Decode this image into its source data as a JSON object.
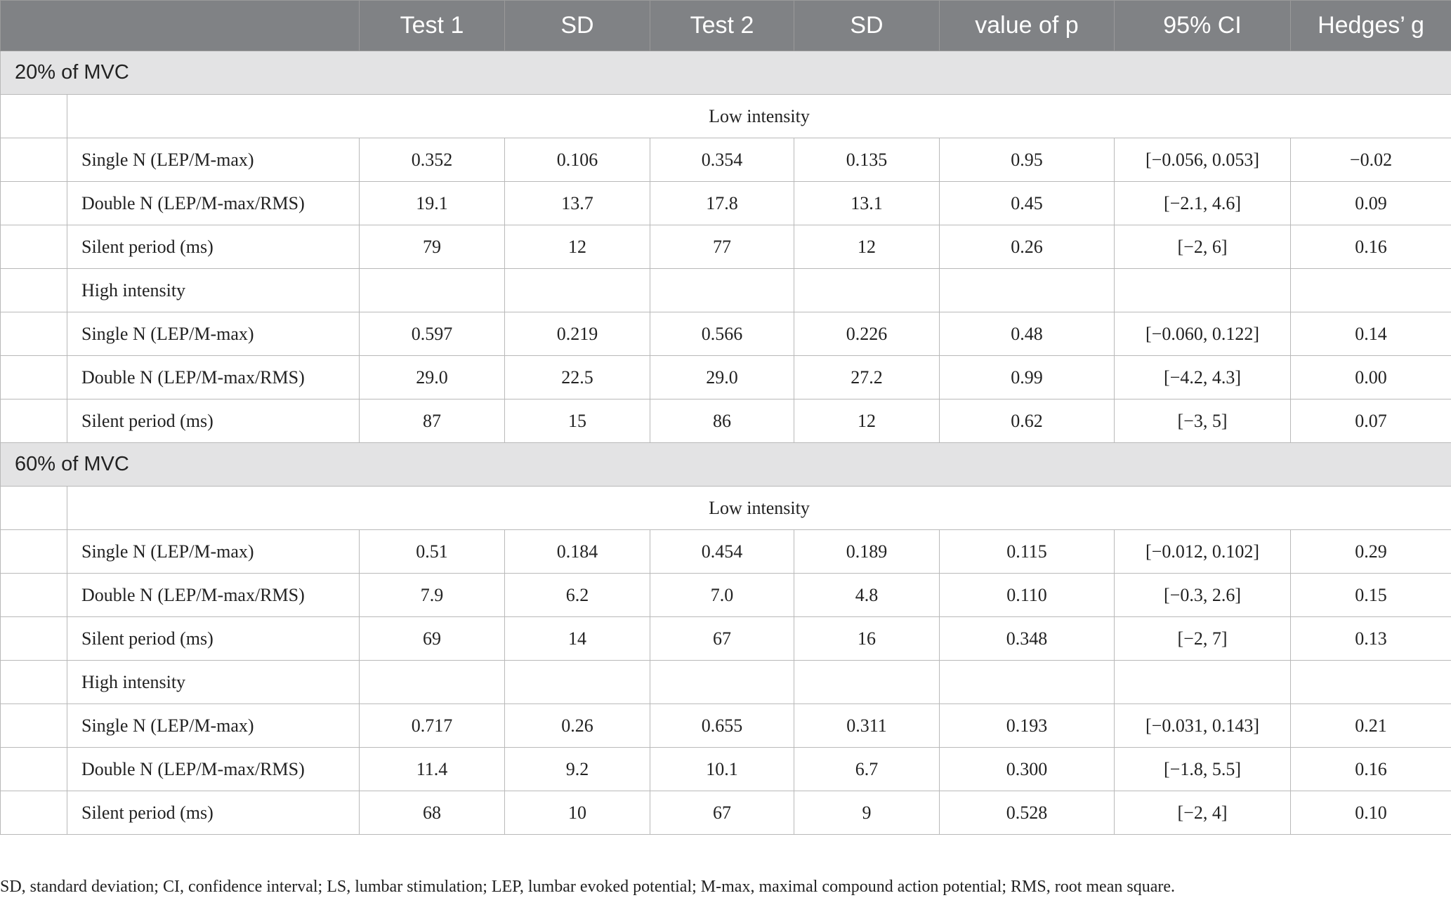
{
  "table": {
    "columns": [
      "Test 1",
      "SD",
      "Test 2",
      "SD",
      "value of p",
      "95% CI",
      "Hedges’ g"
    ],
    "sections": [
      {
        "title": "20% of MVC",
        "blocks": [
          {
            "label": "Low intensity",
            "rows": [
              {
                "label": "Single N (LEP/M-max)",
                "values": [
                  "0.352",
                  "0.106",
                  "0.354",
                  "0.135",
                  "0.95",
                  "[−0.056, 0.053]",
                  "−0.02"
                ]
              },
              {
                "label": "Double N (LEP/M-max/RMS)",
                "values": [
                  "19.1",
                  "13.7",
                  "17.8",
                  "13.1",
                  "0.45",
                  "[−2.1, 4.6]",
                  "0.09"
                ]
              },
              {
                "label": "Silent period (ms)",
                "values": [
                  "79",
                  "12",
                  "77",
                  "12",
                  "0.26",
                  "[−2, 6]",
                  "0.16"
                ]
              }
            ]
          },
          {
            "label": "High intensity",
            "rows": [
              {
                "label": "Single N (LEP/M-max)",
                "values": [
                  "0.597",
                  "0.219",
                  "0.566",
                  "0.226",
                  "0.48",
                  "[−0.060, 0.122]",
                  "0.14"
                ]
              },
              {
                "label": "Double N (LEP/M-max/RMS)",
                "values": [
                  "29.0",
                  "22.5",
                  "29.0",
                  "27.2",
                  "0.99",
                  "[−4.2, 4.3]",
                  "0.00"
                ]
              },
              {
                "label": "Silent period (ms)",
                "values": [
                  "87",
                  "15",
                  "86",
                  "12",
                  "0.62",
                  "[−3, 5]",
                  "0.07"
                ]
              }
            ]
          }
        ]
      },
      {
        "title": "60% of MVC",
        "blocks": [
          {
            "label": "Low intensity",
            "rows": [
              {
                "label": "Single N (LEP/M-max)",
                "values": [
                  "0.51",
                  "0.184",
                  "0.454",
                  "0.189",
                  "0.115",
                  "[−0.012, 0.102]",
                  "0.29"
                ]
              },
              {
                "label": "Double N (LEP/M-max/RMS)",
                "values": [
                  "7.9",
                  "6.2",
                  "7.0",
                  "4.8",
                  "0.110",
                  "[−0.3, 2.6]",
                  "0.15"
                ]
              },
              {
                "label": "Silent period (ms)",
                "values": [
                  "69",
                  "14",
                  "67",
                  "16",
                  "0.348",
                  "[−2, 7]",
                  "0.13"
                ]
              }
            ]
          },
          {
            "label": "High intensity",
            "rows": [
              {
                "label": "Single N (LEP/M-max)",
                "values": [
                  "0.717",
                  "0.26",
                  "0.655",
                  "0.311",
                  "0.193",
                  "[−0.031, 0.143]",
                  "0.21"
                ]
              },
              {
                "label": "Double N (LEP/M-max/RMS)",
                "values": [
                  "11.4",
                  "9.2",
                  "10.1",
                  "6.7",
                  "0.300",
                  "[−1.8, 5.5]",
                  "0.16"
                ]
              },
              {
                "label": "Silent period (ms)",
                "values": [
                  "68",
                  "10",
                  "67",
                  "9",
                  "0.528",
                  "[−2, 4]",
                  "0.10"
                ]
              }
            ]
          }
        ]
      }
    ],
    "footnote": "SD, standard deviation; CI, confidence interval; LS, lumbar stimulation; LEP, lumbar evoked potential; M-max, maximal compound action potential; RMS, root mean square."
  }
}
